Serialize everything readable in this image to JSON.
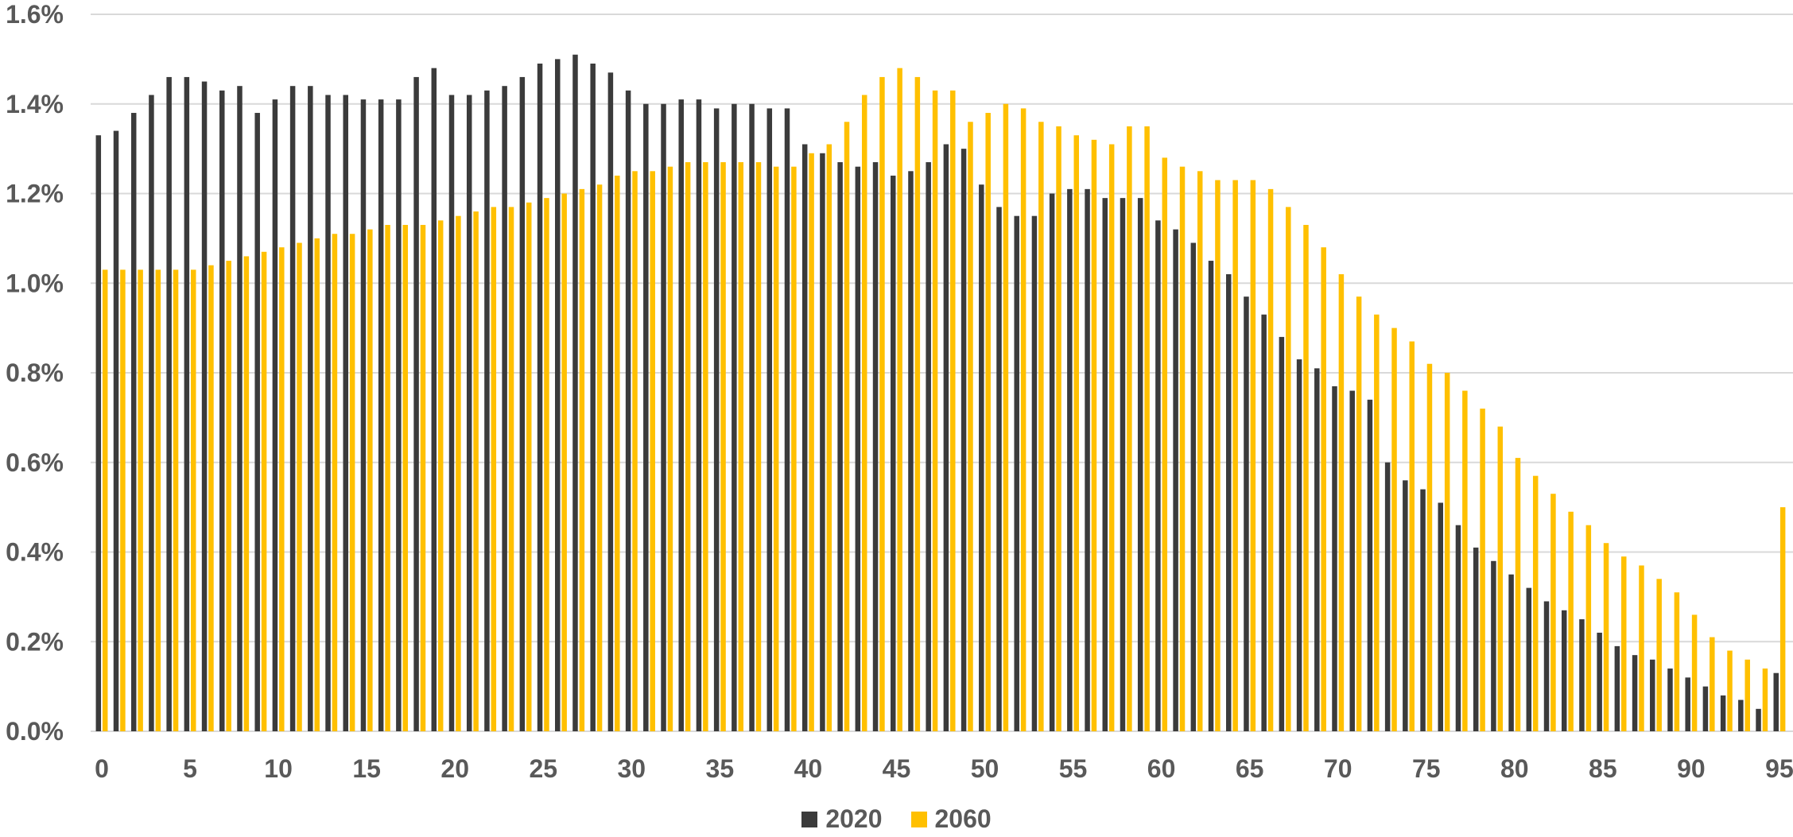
{
  "colors": {
    "s2020": "#3b3b3b",
    "s2060": "#ffc000",
    "grid": "#d9d9d9",
    "text": "#595959"
  },
  "chart_data": {
    "type": "bar",
    "title": "",
    "xlabel": "",
    "ylabel": "",
    "ylim": [
      0,
      1.6
    ],
    "y_unit": "%",
    "y_ticks": [
      "0.0%",
      "0.2%",
      "0.4%",
      "0.6%",
      "0.8%",
      "1.0%",
      "1.2%",
      "1.4%",
      "1.6%"
    ],
    "x_ticks": [
      "0",
      "5",
      "10",
      "15",
      "20",
      "25",
      "30",
      "35",
      "40",
      "45",
      "50",
      "55",
      "60",
      "65",
      "70",
      "75",
      "80",
      "85",
      "90",
      "95"
    ],
    "grid": "horizontal",
    "legend_position": "bottom",
    "categories": [
      0,
      1,
      2,
      3,
      4,
      5,
      6,
      7,
      8,
      9,
      10,
      11,
      12,
      13,
      14,
      15,
      16,
      17,
      18,
      19,
      20,
      21,
      22,
      23,
      24,
      25,
      26,
      27,
      28,
      29,
      30,
      31,
      32,
      33,
      34,
      35,
      36,
      37,
      38,
      39,
      40,
      41,
      42,
      43,
      44,
      45,
      46,
      47,
      48,
      49,
      50,
      51,
      52,
      53,
      54,
      55,
      56,
      57,
      58,
      59,
      60,
      61,
      62,
      63,
      64,
      65,
      66,
      67,
      68,
      69,
      70,
      71,
      72,
      73,
      74,
      75,
      76,
      77,
      78,
      79,
      80,
      81,
      82,
      83,
      84,
      85,
      86,
      87,
      88,
      89,
      90,
      91,
      92,
      93,
      94,
      95
    ],
    "series": [
      {
        "name": "2020",
        "color": "#3b3b3b",
        "values": [
          1.33,
          1.34,
          1.38,
          1.42,
          1.46,
          1.46,
          1.45,
          1.43,
          1.44,
          1.38,
          1.41,
          1.44,
          1.44,
          1.42,
          1.42,
          1.41,
          1.41,
          1.41,
          1.46,
          1.48,
          1.42,
          1.42,
          1.43,
          1.44,
          1.46,
          1.49,
          1.5,
          1.51,
          1.49,
          1.47,
          1.43,
          1.4,
          1.4,
          1.41,
          1.41,
          1.39,
          1.4,
          1.4,
          1.39,
          1.39,
          1.31,
          1.29,
          1.27,
          1.26,
          1.27,
          1.24,
          1.25,
          1.27,
          1.31,
          1.3,
          1.22,
          1.17,
          1.15,
          1.15,
          1.2,
          1.21,
          1.21,
          1.19,
          1.19,
          1.19,
          1.14,
          1.12,
          1.09,
          1.05,
          1.02,
          0.97,
          0.93,
          0.88,
          0.83,
          0.81,
          0.77,
          0.76,
          0.74,
          0.6,
          0.56,
          0.54,
          0.51,
          0.46,
          0.41,
          0.38,
          0.35,
          0.32,
          0.29,
          0.27,
          0.25,
          0.22,
          0.19,
          0.17,
          0.16,
          0.14,
          0.12,
          0.1,
          0.08,
          0.07,
          0.05,
          0.13
        ]
      },
      {
        "name": "2060",
        "color": "#ffc000",
        "values": [
          1.03,
          1.03,
          1.03,
          1.03,
          1.03,
          1.03,
          1.04,
          1.05,
          1.06,
          1.07,
          1.08,
          1.09,
          1.1,
          1.11,
          1.11,
          1.12,
          1.13,
          1.13,
          1.13,
          1.14,
          1.15,
          1.16,
          1.17,
          1.17,
          1.18,
          1.19,
          1.2,
          1.21,
          1.22,
          1.24,
          1.25,
          1.25,
          1.26,
          1.27,
          1.27,
          1.27,
          1.27,
          1.27,
          1.26,
          1.26,
          1.29,
          1.31,
          1.36,
          1.42,
          1.46,
          1.48,
          1.46,
          1.43,
          1.43,
          1.36,
          1.38,
          1.4,
          1.39,
          1.36,
          1.35,
          1.33,
          1.32,
          1.31,
          1.35,
          1.35,
          1.28,
          1.26,
          1.25,
          1.23,
          1.23,
          1.23,
          1.21,
          1.17,
          1.13,
          1.08,
          1.02,
          0.97,
          0.93,
          0.9,
          0.87,
          0.82,
          0.8,
          0.76,
          0.72,
          0.68,
          0.61,
          0.57,
          0.53,
          0.49,
          0.46,
          0.42,
          0.39,
          0.37,
          0.34,
          0.31,
          0.26,
          0.21,
          0.18,
          0.16,
          0.14,
          0.5
        ]
      }
    ]
  }
}
